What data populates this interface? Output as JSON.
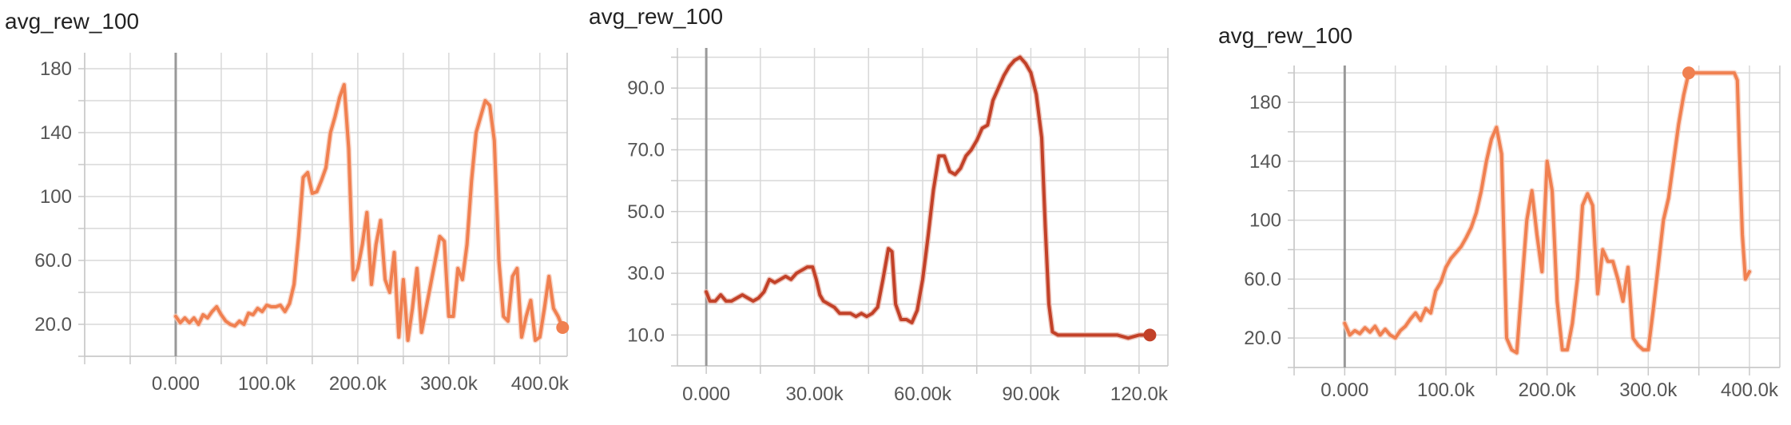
{
  "charts": [
    {
      "title": "avg_rew_100",
      "color": "#f08050",
      "shadow_color": "#f6c9b8",
      "x_tick_labels": [
        "0.000",
        "100.0k",
        "200.0k",
        "300.0k",
        "400.0k"
      ],
      "y_tick_labels": [
        "20.0",
        "60.0",
        "100",
        "140",
        "180"
      ],
      "end_marker": true
    },
    {
      "title": "avg_rew_100",
      "color": "#c24128",
      "shadow_color": "#e8b3a6",
      "x_tick_labels": [
        "0.000",
        "30.00k",
        "60.00k",
        "90.00k",
        "120.0k"
      ],
      "y_tick_labels": [
        "10.0",
        "30.0",
        "50.0",
        "70.0",
        "90.0"
      ],
      "end_marker": true
    },
    {
      "title": "avg_rew_100",
      "color": "#f08050",
      "shadow_color": "#f6c9b8",
      "x_tick_labels": [
        "0.000",
        "100.0k",
        "200.0k",
        "300.0k",
        "400.0k"
      ],
      "y_tick_labels": [
        "20.0",
        "60.0",
        "100",
        "140",
        "180"
      ],
      "end_marker": true
    }
  ],
  "chart_data": [
    {
      "type": "line",
      "title": "avg_rew_100",
      "xlim": [
        -100000,
        430000
      ],
      "ylim": [
        0,
        190
      ],
      "x_ticks": [
        0,
        100000,
        200000,
        300000,
        400000
      ],
      "y_ticks": [
        20,
        60,
        100,
        140,
        180
      ],
      "grid": true,
      "series": [
        {
          "points": [
            [
              0,
              25
            ],
            [
              5000,
              21
            ],
            [
              10000,
              24
            ],
            [
              15000,
              21
            ],
            [
              20000,
              24
            ],
            [
              25000,
              20
            ],
            [
              30000,
              26
            ],
            [
              35000,
              24
            ],
            [
              40000,
              28
            ],
            [
              45000,
              31
            ],
            [
              50000,
              26
            ],
            [
              55000,
              22
            ],
            [
              60000,
              20
            ],
            [
              65000,
              19
            ],
            [
              70000,
              22
            ],
            [
              75000,
              20
            ],
            [
              80000,
              27
            ],
            [
              85000,
              26
            ],
            [
              90000,
              30
            ],
            [
              95000,
              28
            ],
            [
              100000,
              32
            ],
            [
              105000,
              31
            ],
            [
              110000,
              31
            ],
            [
              115000,
              32
            ],
            [
              120000,
              28
            ],
            [
              125000,
              33
            ],
            [
              130000,
              45
            ],
            [
              135000,
              75
            ],
            [
              140000,
              112
            ],
            [
              145000,
              115
            ],
            [
              150000,
              102
            ],
            [
              155000,
              103
            ],
            [
              160000,
              110
            ],
            [
              165000,
              118
            ],
            [
              170000,
              140
            ],
            [
              175000,
              150
            ],
            [
              180000,
              162
            ],
            [
              185000,
              170
            ],
            [
              190000,
              130
            ],
            [
              195000,
              48
            ],
            [
              200000,
              55
            ],
            [
              205000,
              70
            ],
            [
              210000,
              90
            ],
            [
              215000,
              45
            ],
            [
              220000,
              70
            ],
            [
              225000,
              85
            ],
            [
              230000,
              48
            ],
            [
              235000,
              40
            ],
            [
              240000,
              65
            ],
            [
              245000,
              12
            ],
            [
              250000,
              48
            ],
            [
              255000,
              10
            ],
            [
              260000,
              30
            ],
            [
              265000,
              55
            ],
            [
              270000,
              15
            ],
            [
              275000,
              30
            ],
            [
              280000,
              45
            ],
            [
              285000,
              60
            ],
            [
              290000,
              75
            ],
            [
              295000,
              72
            ],
            [
              300000,
              25
            ],
            [
              305000,
              25
            ],
            [
              310000,
              55
            ],
            [
              315000,
              48
            ],
            [
              320000,
              70
            ],
            [
              325000,
              110
            ],
            [
              330000,
              140
            ],
            [
              335000,
              150
            ],
            [
              340000,
              160
            ],
            [
              345000,
              157
            ],
            [
              350000,
              135
            ],
            [
              355000,
              60
            ],
            [
              360000,
              25
            ],
            [
              365000,
              22
            ],
            [
              370000,
              50
            ],
            [
              375000,
              55
            ],
            [
              380000,
              12
            ],
            [
              385000,
              25
            ],
            [
              390000,
              35
            ],
            [
              395000,
              10
            ],
            [
              400000,
              12
            ],
            [
              405000,
              30
            ],
            [
              410000,
              50
            ],
            [
              415000,
              30
            ],
            [
              420000,
              25
            ],
            [
              425000,
              18
            ]
          ]
        }
      ]
    },
    {
      "type": "line",
      "title": "avg_rew_100",
      "xlim": [
        -8000,
        128000
      ],
      "ylim": [
        0,
        103
      ],
      "x_ticks": [
        0,
        30000,
        60000,
        90000,
        120000
      ],
      "y_ticks": [
        10,
        30,
        50,
        70,
        90
      ],
      "grid": true,
      "series": [
        {
          "points": [
            [
              0,
              24
            ],
            [
              1000,
              21
            ],
            [
              2500,
              21
            ],
            [
              4000,
              23
            ],
            [
              5500,
              21
            ],
            [
              7000,
              21
            ],
            [
              8500,
              22
            ],
            [
              10000,
              23
            ],
            [
              11500,
              22
            ],
            [
              13000,
              21
            ],
            [
              14500,
              22
            ],
            [
              16000,
              24
            ],
            [
              17500,
              28
            ],
            [
              19000,
              27
            ],
            [
              20500,
              28
            ],
            [
              22000,
              29
            ],
            [
              23500,
              28
            ],
            [
              25000,
              30
            ],
            [
              26500,
              31
            ],
            [
              28000,
              32
            ],
            [
              29500,
              32
            ],
            [
              30500,
              28
            ],
            [
              31500,
              23
            ],
            [
              32500,
              21
            ],
            [
              34000,
              20
            ],
            [
              35500,
              19
            ],
            [
              37000,
              17
            ],
            [
              38500,
              17
            ],
            [
              40000,
              17
            ],
            [
              41500,
              16
            ],
            [
              43000,
              17
            ],
            [
              44500,
              16
            ],
            [
              46000,
              17
            ],
            [
              47500,
              19
            ],
            [
              49000,
              28
            ],
            [
              50500,
              38
            ],
            [
              51500,
              37
            ],
            [
              52500,
              20
            ],
            [
              54000,
              15
            ],
            [
              55500,
              15
            ],
            [
              57000,
              14
            ],
            [
              58500,
              18
            ],
            [
              60000,
              28
            ],
            [
              61500,
              42
            ],
            [
              63000,
              57
            ],
            [
              64500,
              68
            ],
            [
              66000,
              68
            ],
            [
              67500,
              63
            ],
            [
              69000,
              62
            ],
            [
              70500,
              64
            ],
            [
              72000,
              68
            ],
            [
              73500,
              70
            ],
            [
              75000,
              73
            ],
            [
              76500,
              77
            ],
            [
              78000,
              78
            ],
            [
              79500,
              86
            ],
            [
              81000,
              90
            ],
            [
              82500,
              94
            ],
            [
              84000,
              97
            ],
            [
              85500,
              99
            ],
            [
              87000,
              100
            ],
            [
              88500,
              98
            ],
            [
              90000,
              95
            ],
            [
              91500,
              88
            ],
            [
              93000,
              74
            ],
            [
              94000,
              45
            ],
            [
              95000,
              20
            ],
            [
              96000,
              11
            ],
            [
              97500,
              10
            ],
            [
              99000,
              10
            ],
            [
              102000,
              10
            ],
            [
              105000,
              10
            ],
            [
              108000,
              10
            ],
            [
              111000,
              10
            ],
            [
              114000,
              10
            ],
            [
              117000,
              9
            ],
            [
              120000,
              10
            ],
            [
              123000,
              10
            ]
          ]
        }
      ]
    },
    {
      "type": "line",
      "title": "avg_rew_100",
      "xlim": [
        -50000,
        430000
      ],
      "ylim": [
        0,
        205
      ],
      "x_ticks": [
        0,
        100000,
        200000,
        300000,
        400000
      ],
      "y_ticks": [
        20,
        60,
        100,
        140,
        180
      ],
      "grid": true,
      "series": [
        {
          "points": [
            [
              0,
              30
            ],
            [
              5000,
              22
            ],
            [
              10000,
              25
            ],
            [
              15000,
              23
            ],
            [
              20000,
              27
            ],
            [
              25000,
              24
            ],
            [
              30000,
              28
            ],
            [
              35000,
              22
            ],
            [
              40000,
              26
            ],
            [
              45000,
              22
            ],
            [
              50000,
              20
            ],
            [
              55000,
              25
            ],
            [
              60000,
              28
            ],
            [
              65000,
              33
            ],
            [
              70000,
              37
            ],
            [
              75000,
              32
            ],
            [
              80000,
              40
            ],
            [
              85000,
              37
            ],
            [
              90000,
              52
            ],
            [
              95000,
              58
            ],
            [
              100000,
              68
            ],
            [
              105000,
              74
            ],
            [
              110000,
              78
            ],
            [
              115000,
              82
            ],
            [
              120000,
              88
            ],
            [
              125000,
              95
            ],
            [
              130000,
              105
            ],
            [
              135000,
              120
            ],
            [
              140000,
              140
            ],
            [
              145000,
              155
            ],
            [
              150000,
              163
            ],
            [
              155000,
              145
            ],
            [
              160000,
              20
            ],
            [
              165000,
              12
            ],
            [
              170000,
              10
            ],
            [
              175000,
              55
            ],
            [
              180000,
              100
            ],
            [
              185000,
              120
            ],
            [
              190000,
              90
            ],
            [
              195000,
              65
            ],
            [
              200000,
              140
            ],
            [
              205000,
              120
            ],
            [
              210000,
              45
            ],
            [
              215000,
              12
            ],
            [
              220000,
              12
            ],
            [
              225000,
              30
            ],
            [
              230000,
              60
            ],
            [
              235000,
              110
            ],
            [
              240000,
              118
            ],
            [
              245000,
              110
            ],
            [
              250000,
              50
            ],
            [
              255000,
              80
            ],
            [
              260000,
              72
            ],
            [
              265000,
              72
            ],
            [
              270000,
              60
            ],
            [
              275000,
              45
            ],
            [
              280000,
              68
            ],
            [
              285000,
              20
            ],
            [
              290000,
              15
            ],
            [
              295000,
              12
            ],
            [
              300000,
              12
            ],
            [
              305000,
              40
            ],
            [
              310000,
              70
            ],
            [
              315000,
              100
            ],
            [
              320000,
              115
            ],
            [
              325000,
              140
            ],
            [
              330000,
              165
            ],
            [
              335000,
              185
            ],
            [
              340000,
              200
            ],
            [
              345000,
              200
            ],
            [
              350000,
              200
            ],
            [
              360000,
              200
            ],
            [
              370000,
              200
            ],
            [
              380000,
              200
            ],
            [
              385000,
              200
            ],
            [
              388000,
              195
            ],
            [
              390000,
              150
            ],
            [
              393000,
              90
            ],
            [
              396000,
              60
            ],
            [
              400000,
              65
            ]
          ]
        }
      ]
    }
  ]
}
